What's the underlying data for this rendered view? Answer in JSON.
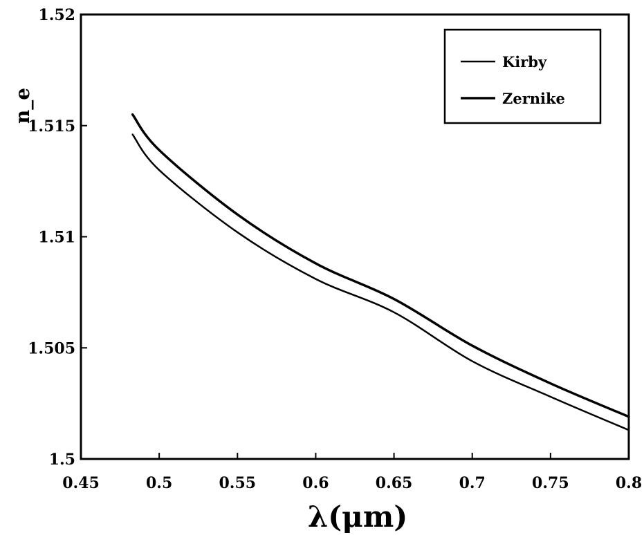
{
  "chart_data": {
    "type": "line",
    "title": "",
    "xlabel": "λ(μm)",
    "ylabel": "n_e",
    "xlim": [
      0.45,
      0.8
    ],
    "ylim": [
      1.5,
      1.52
    ],
    "xticks": [
      0.45,
      0.5,
      0.55,
      0.6,
      0.65,
      0.7,
      0.75,
      0.8
    ],
    "yticks": [
      1.5,
      1.505,
      1.51,
      1.515,
      1.52
    ],
    "xtick_labels": [
      "0.45",
      "0.5",
      "0.55",
      "0.6",
      "0.65",
      "0.7",
      "0.75",
      "0.8"
    ],
    "ytick_labels": [
      "1.5",
      "1.505",
      "1.51",
      "1.515",
      "1.52"
    ],
    "grid": false,
    "legend_position": "top-right",
    "series": [
      {
        "name": "Kirby",
        "color": "#000000",
        "x": [
          0.483,
          0.5,
          0.55,
          0.6,
          0.65,
          0.7,
          0.75,
          0.8
        ],
        "y": [
          1.5146,
          1.513,
          1.5102,
          1.5081,
          1.5066,
          1.5044,
          1.5028,
          1.5013
        ]
      },
      {
        "name": "Zernike",
        "color": "#000000",
        "x": [
          0.483,
          0.5,
          0.55,
          0.6,
          0.65,
          0.7,
          0.75,
          0.8
        ],
        "y": [
          1.5155,
          1.5139,
          1.511,
          1.5088,
          1.5072,
          1.5051,
          1.5034,
          1.5019
        ]
      }
    ]
  }
}
